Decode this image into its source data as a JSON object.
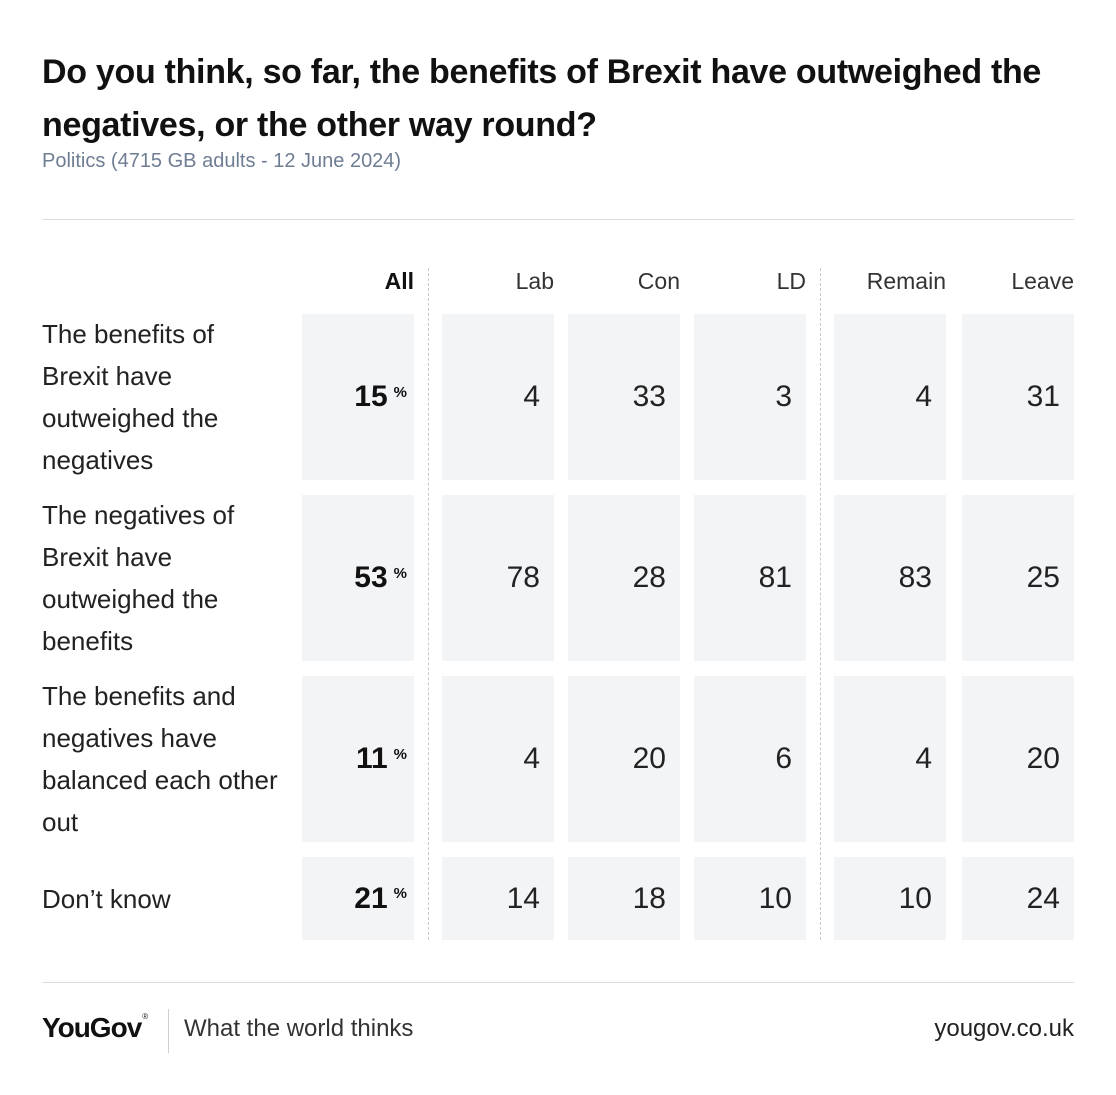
{
  "title": "Do you think, so far, the benefits of Brexit have outweighed the negatives, or the other way round?",
  "subtitle": "Politics (4715 GB adults - 12 June 2024)",
  "footer": {
    "logo": "YouGov",
    "tagline": "What the world thinks",
    "url": "yougov.co.uk"
  },
  "chart_data": {
    "type": "table",
    "columns": [
      "All",
      "Lab",
      "Con",
      "LD",
      "Remain",
      "Leave"
    ],
    "unit": "%",
    "rows": [
      {
        "label": "The benefits of Brexit have outweighed the negatives",
        "values": [
          15,
          4,
          33,
          3,
          4,
          31
        ]
      },
      {
        "label": "The negatives of Brexit have outweighed the benefits",
        "values": [
          53,
          78,
          28,
          81,
          83,
          25
        ]
      },
      {
        "label": "The benefits and negatives have balanced each other out",
        "values": [
          11,
          4,
          20,
          6,
          4,
          20
        ]
      },
      {
        "label": "Don’t know",
        "values": [
          21,
          14,
          18,
          10,
          10,
          24
        ]
      }
    ]
  }
}
